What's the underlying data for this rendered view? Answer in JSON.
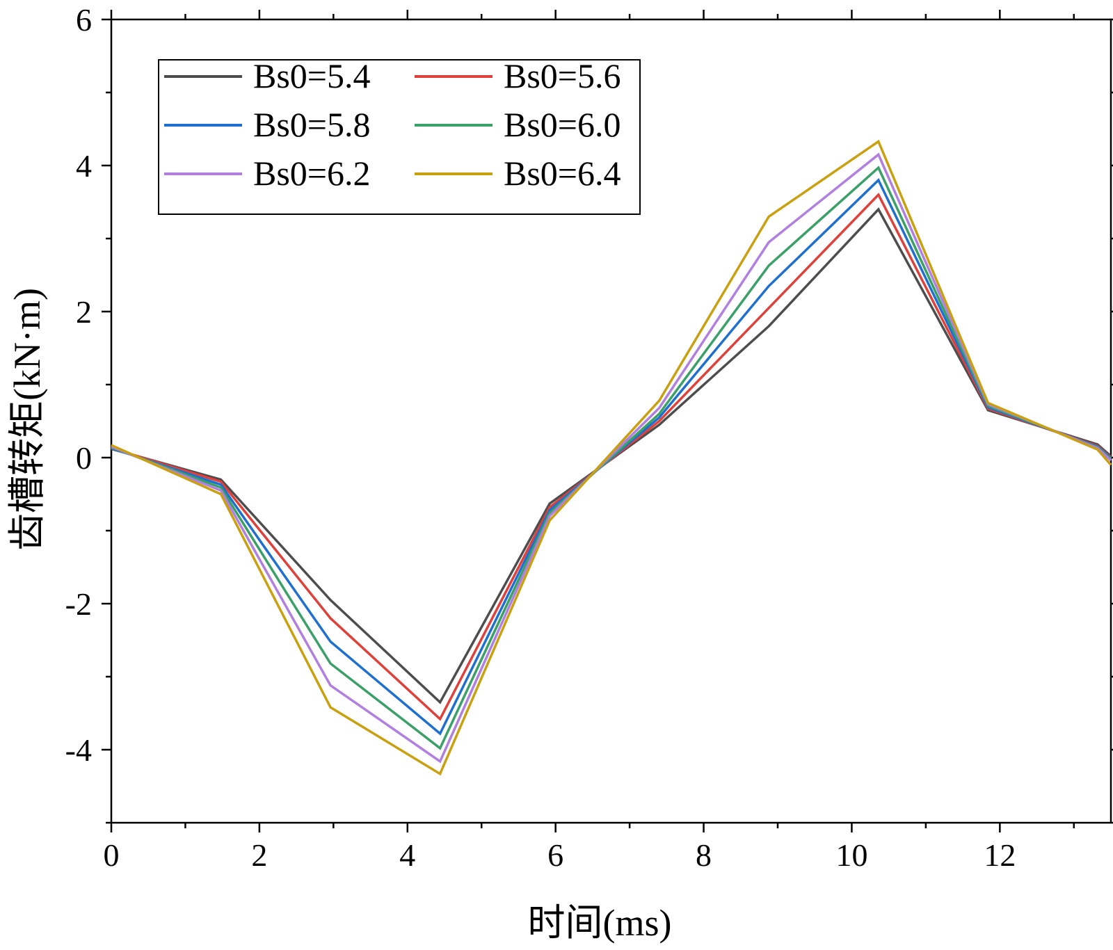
{
  "chart_data": {
    "type": "line",
    "title": "",
    "xlabel": "时间(ms)",
    "ylabel": "齿槽转矩(kN·m)",
    "xlim": [
      0,
      13.5
    ],
    "ylim": [
      -5,
      6
    ],
    "xticks": [
      0,
      2,
      4,
      6,
      8,
      10,
      12
    ],
    "xtick_labels": [
      "0",
      "2",
      "4",
      "6",
      "8",
      "10",
      "12"
    ],
    "yticks": [
      -4,
      -2,
      0,
      2,
      4,
      6
    ],
    "ytick_labels": [
      "-4",
      "-2",
      "0",
      "2",
      "4",
      "6"
    ],
    "x": [
      0,
      1.48,
      2.96,
      4.44,
      5.92,
      7.4,
      8.88,
      10.36,
      11.84,
      13.32,
      13.5
    ],
    "legend_position": "top-left",
    "series": [
      {
        "name": "Bs0=5.4",
        "color": "#4d4d4d",
        "values": [
          0.12,
          -0.3,
          -1.95,
          -3.35,
          -0.63,
          0.45,
          1.8,
          3.4,
          0.65,
          0.18,
          0.02
        ]
      },
      {
        "name": "Bs0=5.6",
        "color": "#e0403a",
        "values": [
          0.13,
          -0.33,
          -2.2,
          -3.58,
          -0.68,
          0.5,
          2.05,
          3.6,
          0.67,
          0.16,
          0.0
        ]
      },
      {
        "name": "Bs0=5.8",
        "color": "#1f6fd0",
        "values": [
          0.13,
          -0.37,
          -2.52,
          -3.78,
          -0.72,
          0.55,
          2.35,
          3.8,
          0.69,
          0.15,
          -0.01
        ]
      },
      {
        "name": "Bs0=6.0",
        "color": "#3aa067",
        "values": [
          0.14,
          -0.41,
          -2.82,
          -3.98,
          -0.76,
          0.6,
          2.63,
          3.97,
          0.71,
          0.14,
          -0.02
        ]
      },
      {
        "name": "Bs0=6.2",
        "color": "#b07fe0",
        "values": [
          0.15,
          -0.45,
          -3.12,
          -4.16,
          -0.8,
          0.68,
          2.95,
          4.15,
          0.73,
          0.13,
          -0.04
        ]
      },
      {
        "name": "Bs0=6.4",
        "color": "#c9a010",
        "values": [
          0.17,
          -0.5,
          -3.42,
          -4.33,
          -0.86,
          0.78,
          3.3,
          4.33,
          0.75,
          0.11,
          -0.1
        ]
      }
    ]
  }
}
